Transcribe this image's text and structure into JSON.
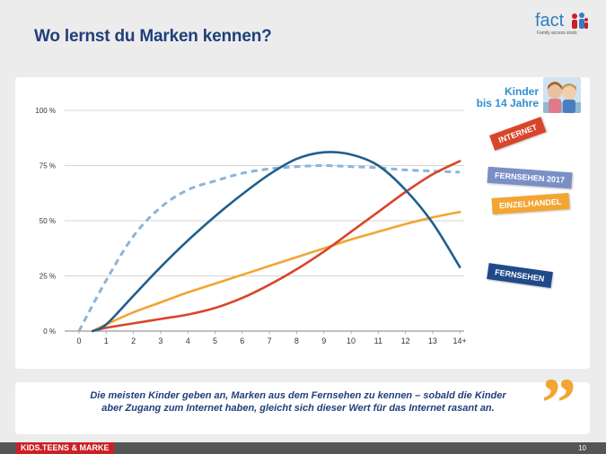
{
  "slide": {
    "title": "Wo lernst du Marken kennen?",
    "quote": "Die meisten Kinder geben an, Marken aus dem Fernsehen zu kennen – sobald die Kinder aber Zugang zum Internet haben, gleicht sich dieser Wert für das Internet rasant an.",
    "quote_mark": "”",
    "page_number": "10"
  },
  "logo": {
    "text": "fact",
    "sub": "Family access stock"
  },
  "footer": {
    "brand": "KIDS.TEENS & MARKE"
  },
  "audience": {
    "label_line1": "Kinder",
    "label_line2": "bis 14 Jahre"
  },
  "colors": {
    "internet": "#d9452b",
    "fernsehen": "#1f5f8f",
    "fernsehen_2017": "#8ab4db",
    "einzelhandel": "#f3a532",
    "title": "#1f3f7a"
  },
  "chart_data": {
    "type": "line",
    "title": "",
    "xlabel": "",
    "ylabel": "",
    "x": [
      0,
      1,
      2,
      3,
      4,
      5,
      6,
      7,
      8,
      9,
      10,
      11,
      12,
      13,
      14
    ],
    "categories": [
      "0",
      "1",
      "2",
      "3",
      "4",
      "5",
      "6",
      "7",
      "8",
      "9",
      "10",
      "11",
      "12",
      "13",
      "14+"
    ],
    "ylim": [
      0,
      100
    ],
    "yticks": [
      0,
      25,
      50,
      75,
      100
    ],
    "ytick_labels": [
      "0 %",
      "25 %",
      "50 %",
      "75 %",
      "100 %"
    ],
    "grid": "horizontal",
    "legend": "line-end labels",
    "series": [
      {
        "name": "INTERNET",
        "color": "#d9452b",
        "dashed": false,
        "x": [
          0.5,
          1,
          2,
          3,
          4,
          5,
          6,
          7,
          8,
          9,
          10,
          11,
          12,
          13,
          14
        ],
        "values": [
          0,
          1.5,
          3.5,
          5.5,
          7.5,
          10.5,
          15,
          21,
          28,
          36,
          45,
          54,
          63,
          71,
          77
        ]
      },
      {
        "name": "FERNSEHEN",
        "color": "#1f5f8f",
        "dashed": false,
        "x": [
          0.5,
          1,
          2,
          3,
          4,
          5,
          6,
          7,
          8,
          9,
          10,
          11,
          12,
          13,
          14
        ],
        "values": [
          0,
          3,
          16,
          29,
          41,
          52,
          62,
          71,
          78,
          81,
          80,
          75,
          64,
          49,
          29
        ]
      },
      {
        "name": "FERNSEHEN 2017",
        "color": "#8ab4db",
        "dashed": true,
        "x": [
          0,
          1,
          2,
          3,
          4,
          5,
          6,
          7,
          8,
          9,
          10,
          11,
          12,
          13,
          14
        ],
        "values": [
          0,
          23,
          43,
          56,
          64,
          68,
          71.5,
          73.5,
          74.5,
          75,
          74.5,
          74,
          73,
          72.5,
          72
        ]
      },
      {
        "name": "EINZELHANDEL",
        "color": "#f3a532",
        "dashed": false,
        "x": [
          0.5,
          1,
          2,
          3,
          4,
          5,
          6,
          7,
          8,
          9,
          10,
          11,
          12,
          13,
          14
        ],
        "values": [
          0,
          3,
          8.5,
          13,
          17.5,
          21.5,
          25.5,
          29.5,
          33.5,
          37.5,
          41.5,
          45,
          48.5,
          51.5,
          54
        ]
      }
    ]
  }
}
